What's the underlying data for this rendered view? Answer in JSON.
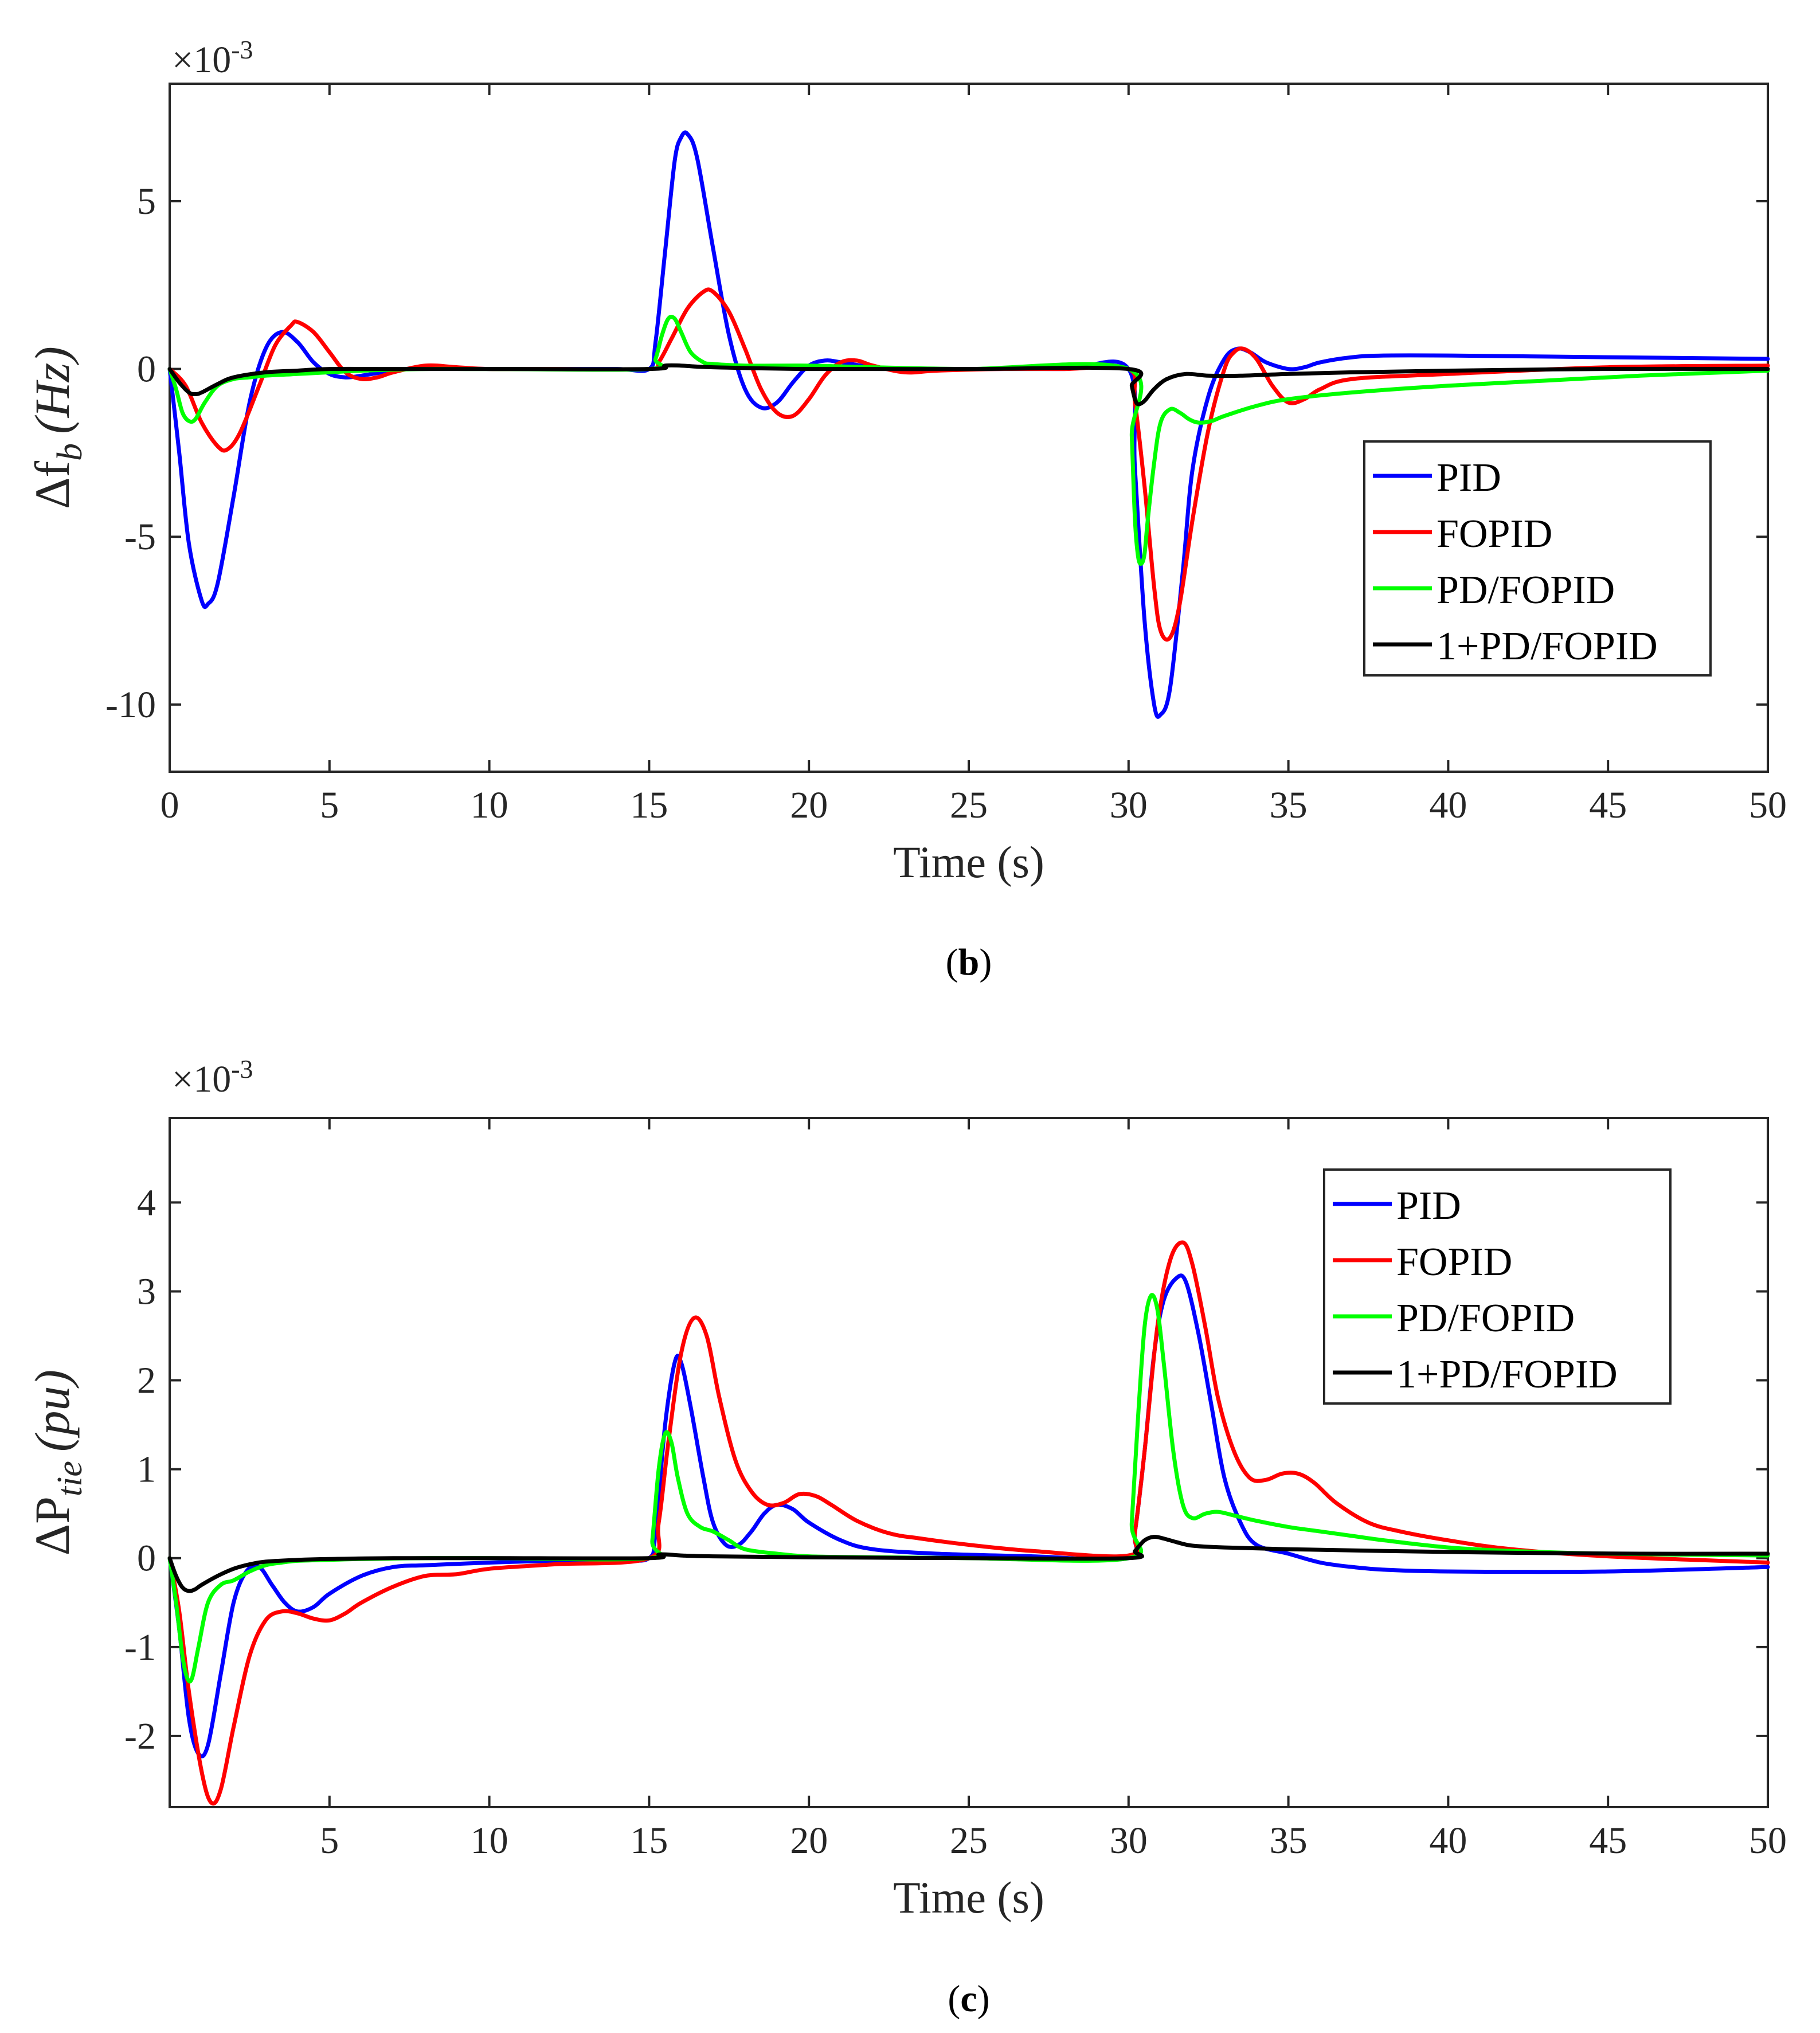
{
  "colors": {
    "PID": "#0000ff",
    "FOPID": "#ff0000",
    "PD/FOPID": "#00ff00",
    "1+PD/FOPID": "#000000"
  },
  "chart_data": [
    {
      "id": "b",
      "type": "line",
      "caption_label": "b",
      "ylabel_main": "Δf",
      "ylabel_sub": "b",
      "ylabel_unit": "(Hz)",
      "xlabel": "Time (s)",
      "exponent_label": "×10",
      "exponent_power": "-3",
      "xlim": [
        0,
        50
      ],
      "ylim": [
        -12,
        8.5
      ],
      "xticks": [
        0,
        5,
        10,
        15,
        20,
        25,
        30,
        35,
        40,
        45,
        50
      ],
      "xtick_labels": [
        "0",
        "5",
        "10",
        "15",
        "20",
        "25",
        "30",
        "35",
        "40",
        "45",
        "50"
      ],
      "yticks": [
        -10,
        -5,
        0,
        5
      ],
      "ytick_labels": [
        "-10",
        "-5",
        "0",
        "5"
      ],
      "legend": [
        "PID",
        "FOPID",
        "PD/FOPID",
        "1+PD/FOPID"
      ],
      "legend_position": "right-middle",
      "series": [
        {
          "name": "PID",
          "color": "#0000ff",
          "x": [
            0,
            0.3,
            0.6,
            1.0,
            1.2,
            1.5,
            2.0,
            2.5,
            3.0,
            3.5,
            4.0,
            4.5,
            5.0,
            5.5,
            6.0,
            7.0,
            8.0,
            9.0,
            10.0,
            12.0,
            14.0,
            15.0,
            15.2,
            15.5,
            15.8,
            16.0,
            16.2,
            16.5,
            17.0,
            17.5,
            18.0,
            18.5,
            19.0,
            19.5,
            20.0,
            20.5,
            21.0,
            22.0,
            23.0,
            25.0,
            28.0,
            30.0,
            30.2,
            30.5,
            30.8,
            31.0,
            31.3,
            31.7,
            32.0,
            32.5,
            33.0,
            33.4,
            33.8,
            34.3,
            35.0,
            35.5,
            36.0,
            37.0,
            38.0,
            40.0,
            45.0,
            50.0
          ],
          "y": [
            0,
            -2.5,
            -5.2,
            -6.9,
            -7.0,
            -6.4,
            -3.8,
            -1.0,
            0.6,
            1.1,
            0.8,
            0.2,
            -0.15,
            -0.25,
            -0.2,
            -0.05,
            0.05,
            0.02,
            0,
            0,
            0,
            0,
            0.8,
            3.5,
            6.2,
            6.9,
            7.0,
            6.3,
            3.6,
            1.0,
            -0.6,
            -1.15,
            -1.0,
            -0.4,
            0.1,
            0.25,
            0.2,
            0.05,
            0,
            0,
            0,
            0,
            -3.0,
            -7.5,
            -10.0,
            -10.3,
            -9.5,
            -6.0,
            -3.0,
            -0.8,
            0.3,
            0.6,
            0.5,
            0.2,
            0.0,
            0.05,
            0.2,
            0.35,
            0.4,
            0.4,
            0.35,
            0.3
          ]
        },
        {
          "name": "FOPID",
          "color": "#ff0000",
          "x": [
            0,
            0.5,
            1.0,
            1.5,
            1.8,
            2.2,
            2.8,
            3.3,
            3.8,
            4.0,
            4.5,
            5.0,
            5.5,
            6.0,
            6.5,
            7.0,
            8.0,
            9.0,
            10.0,
            12.0,
            15.0,
            15.3,
            15.7,
            16.2,
            16.7,
            17.0,
            17.5,
            18.0,
            18.5,
            19.0,
            19.5,
            20.0,
            20.5,
            21.0,
            21.5,
            22.0,
            23.0,
            24.0,
            26.0,
            28.0,
            30.0,
            30.2,
            30.5,
            30.8,
            31.0,
            31.3,
            31.6,
            32.0,
            32.5,
            33.0,
            33.3,
            33.6,
            34.0,
            34.5,
            35.0,
            35.5,
            36.0,
            37.0,
            40.0,
            45.0,
            50.0
          ],
          "y": [
            0,
            -0.5,
            -1.6,
            -2.3,
            -2.4,
            -1.9,
            -0.5,
            0.7,
            1.3,
            1.4,
            1.1,
            0.5,
            -0.1,
            -0.3,
            -0.25,
            -0.1,
            0.1,
            0.05,
            0,
            0,
            0,
            0.2,
            0.9,
            1.8,
            2.3,
            2.3,
            1.7,
            0.6,
            -0.6,
            -1.3,
            -1.4,
            -0.9,
            -0.2,
            0.2,
            0.25,
            0.1,
            -0.1,
            -0.05,
            0,
            0,
            0,
            -1.0,
            -3.5,
            -6.5,
            -7.8,
            -8.0,
            -7.0,
            -4.5,
            -1.8,
            0.0,
            0.5,
            0.6,
            0.3,
            -0.5,
            -1.0,
            -0.9,
            -0.6,
            -0.3,
            -0.15,
            0.05,
            0.1
          ]
        },
        {
          "name": "PD/FOPID",
          "color": "#00ff00",
          "x": [
            0,
            0.2,
            0.4,
            0.6,
            0.8,
            1.1,
            1.5,
            2.0,
            2.5,
            3.0,
            4.0,
            5.0,
            6.0,
            8.0,
            10.0,
            15.0,
            15.2,
            15.4,
            15.6,
            15.8,
            16.0,
            16.3,
            16.7,
            17.0,
            18.0,
            20.0,
            22.0,
            25.0,
            30.0,
            30.1,
            30.2,
            30.3,
            30.4,
            30.5,
            30.6,
            30.8,
            31.0,
            31.3,
            31.6,
            31.9,
            32.2,
            32.6,
            33.0,
            34.0,
            35.0,
            37.0,
            40.0,
            43.0,
            46.0,
            50.0
          ],
          "y": [
            0,
            -0.6,
            -1.3,
            -1.55,
            -1.5,
            -1.0,
            -0.5,
            -0.3,
            -0.25,
            -0.2,
            -0.15,
            -0.1,
            -0.05,
            0,
            0,
            0,
            0.3,
            1.0,
            1.5,
            1.5,
            1.1,
            0.5,
            0.2,
            0.15,
            0.1,
            0.1,
            0.05,
            0,
            0,
            -2.0,
            -4.5,
            -5.6,
            -5.8,
            -5.5,
            -4.5,
            -2.8,
            -1.6,
            -1.2,
            -1.3,
            -1.5,
            -1.6,
            -1.55,
            -1.4,
            -1.1,
            -0.9,
            -0.7,
            -0.5,
            -0.35,
            -0.2,
            -0.05
          ]
        },
        {
          "name": "1+PD/FOPID",
          "color": "#000000",
          "x": [
            0,
            0.3,
            0.6,
            0.8,
            1.0,
            1.5,
            2.0,
            3.0,
            4.0,
            5.0,
            7.0,
            10.0,
            15.0,
            15.5,
            16.0,
            17.0,
            20.0,
            25.0,
            30.0,
            30.1,
            30.2,
            30.3,
            30.5,
            30.8,
            31.2,
            31.8,
            32.5,
            33.5,
            35.0,
            37.0,
            40.0,
            45.0,
            50.0
          ],
          "y": [
            0,
            -0.4,
            -0.7,
            -0.75,
            -0.7,
            -0.45,
            -0.25,
            -0.1,
            -0.05,
            0,
            0,
            0,
            0,
            0.1,
            0.1,
            0.05,
            0,
            0,
            0,
            -0.5,
            -0.9,
            -1.05,
            -0.95,
            -0.6,
            -0.3,
            -0.15,
            -0.2,
            -0.2,
            -0.15,
            -0.1,
            -0.05,
            0,
            0
          ]
        }
      ]
    },
    {
      "id": "c",
      "type": "line",
      "caption_label": "c",
      "ylabel_main": "ΔP",
      "ylabel_sub": "tie",
      "ylabel_unit": "(pu)",
      "xlabel": "Time (s)",
      "exponent_label": "×10",
      "exponent_power": "-3",
      "xlim": [
        0,
        50
      ],
      "ylim": [
        -2.8,
        4.95
      ],
      "xticks": [
        5,
        10,
        15,
        20,
        25,
        30,
        35,
        40,
        45,
        50
      ],
      "xtick_labels": [
        "5",
        "10",
        "15",
        "20",
        "25",
        "30",
        "35",
        "40",
        "45",
        "50"
      ],
      "yticks": [
        -2,
        -1,
        0,
        1,
        2,
        3,
        4
      ],
      "ytick_labels": [
        "-2",
        "-1",
        "0",
        "1",
        "2",
        "3",
        "4"
      ],
      "legend": [
        "PID",
        "FOPID",
        "PD/FOPID",
        "1+PD/FOPID"
      ],
      "legend_position": "top-right",
      "series": [
        {
          "name": "PID",
          "color": "#0000ff",
          "x": [
            0,
            0.3,
            0.6,
            0.9,
            1.2,
            1.6,
            2.0,
            2.4,
            2.8,
            3.2,
            3.6,
            4.0,
            4.5,
            5.0,
            6.0,
            7.0,
            8.0,
            10.0,
            12.0,
            14.0,
            15.0,
            15.2,
            15.5,
            15.8,
            16.0,
            16.3,
            16.7,
            17.0,
            17.4,
            17.8,
            18.2,
            18.6,
            19.0,
            19.5,
            20.0,
            21.0,
            22.0,
            24.0,
            27.0,
            30.0,
            30.2,
            30.5,
            30.8,
            31.1,
            31.5,
            31.8,
            32.2,
            32.6,
            33.0,
            33.5,
            34.0,
            35.0,
            36.0,
            37.0,
            38.0,
            40.0,
            45.0,
            50.0
          ],
          "y": [
            0,
            -0.8,
            -1.8,
            -2.2,
            -2.1,
            -1.3,
            -0.5,
            -0.15,
            -0.1,
            -0.3,
            -0.5,
            -0.6,
            -0.55,
            -0.4,
            -0.2,
            -0.1,
            -0.08,
            -0.05,
            -0.03,
            -0.02,
            0,
            0.3,
            1.5,
            2.2,
            2.2,
            1.7,
            0.9,
            0.4,
            0.15,
            0.15,
            0.3,
            0.5,
            0.6,
            0.55,
            0.4,
            0.2,
            0.1,
            0.05,
            0.02,
            0,
            0.3,
            1.2,
            2.3,
            2.9,
            3.15,
            3.1,
            2.5,
            1.7,
            0.9,
            0.4,
            0.15,
            0.05,
            -0.05,
            -0.1,
            -0.13,
            -0.15,
            -0.15,
            -0.1
          ]
        },
        {
          "name": "FOPID",
          "color": "#ff0000",
          "x": [
            0,
            0.3,
            0.6,
            1.0,
            1.3,
            1.6,
            2.0,
            2.5,
            3.0,
            3.5,
            4.0,
            4.5,
            5.0,
            5.5,
            6.0,
            7.0,
            8.0,
            9.0,
            10.0,
            12.0,
            15.0,
            15.3,
            15.6,
            16.0,
            16.4,
            16.8,
            17.2,
            17.7,
            18.2,
            18.7,
            19.2,
            19.7,
            20.2,
            20.7,
            21.5,
            22.5,
            23.5,
            25.0,
            27.0,
            30.0,
            30.2,
            30.5,
            30.9,
            31.3,
            31.7,
            32.0,
            32.4,
            32.8,
            33.3,
            33.8,
            34.3,
            34.8,
            35.3,
            35.8,
            36.5,
            37.5,
            38.5,
            40.0,
            42.0,
            45.0,
            50.0
          ],
          "y": [
            0,
            -0.6,
            -1.5,
            -2.4,
            -2.75,
            -2.6,
            -1.9,
            -1.1,
            -0.7,
            -0.6,
            -0.62,
            -0.68,
            -0.7,
            -0.62,
            -0.5,
            -0.32,
            -0.2,
            -0.18,
            -0.12,
            -0.07,
            0,
            0.4,
            1.3,
            2.3,
            2.7,
            2.5,
            1.8,
            1.1,
            0.75,
            0.6,
            0.62,
            0.72,
            0.7,
            0.6,
            0.42,
            0.28,
            0.22,
            0.15,
            0.08,
            0.03,
            0.3,
            1.2,
            2.6,
            3.35,
            3.55,
            3.3,
            2.6,
            1.8,
            1.2,
            0.9,
            0.88,
            0.95,
            0.95,
            0.85,
            0.62,
            0.4,
            0.3,
            0.2,
            0.1,
            0.02,
            -0.05
          ]
        },
        {
          "name": "PD/FOPID",
          "color": "#00ff00",
          "x": [
            0,
            0.2,
            0.4,
            0.55,
            0.7,
            0.9,
            1.2,
            1.6,
            2.0,
            2.5,
            3.0,
            3.5,
            4.0,
            5.0,
            6.0,
            8.0,
            10.0,
            15.0,
            15.1,
            15.3,
            15.5,
            15.7,
            15.9,
            16.2,
            16.6,
            17.0,
            17.5,
            18.0,
            19.0,
            20.0,
            22.0,
            25.0,
            30.0,
            30.1,
            30.3,
            30.5,
            30.7,
            30.9,
            31.1,
            31.4,
            31.7,
            32.0,
            32.4,
            32.8,
            33.3,
            34.0,
            35.0,
            36.0,
            37.0,
            38.0,
            40.0,
            42.0,
            45.0,
            50.0
          ],
          "y": [
            0,
            -0.5,
            -1.1,
            -1.35,
            -1.35,
            -1.0,
            -0.5,
            -0.3,
            -0.25,
            -0.15,
            -0.08,
            -0.05,
            -0.03,
            -0.02,
            -0.01,
            0,
            0,
            0,
            0.2,
            1.0,
            1.4,
            1.3,
            0.9,
            0.5,
            0.35,
            0.3,
            0.2,
            0.1,
            0.05,
            0.02,
            0.01,
            0,
            0,
            0.4,
            1.6,
            2.6,
            2.95,
            2.8,
            2.2,
            1.2,
            0.6,
            0.45,
            0.5,
            0.52,
            0.48,
            0.42,
            0.35,
            0.3,
            0.25,
            0.2,
            0.12,
            0.08,
            0.05,
            0.03
          ]
        },
        {
          "name": "1+PD/FOPID",
          "color": "#000000",
          "x": [
            0,
            0.2,
            0.4,
            0.6,
            0.8,
            1.0,
            1.5,
            2.0,
            2.5,
            3.0,
            4.0,
            5.0,
            7.0,
            10.0,
            15.0,
            15.3,
            15.6,
            16.0,
            17.0,
            20.0,
            25.0,
            30.0,
            30.2,
            30.5,
            30.8,
            31.1,
            31.5,
            32.0,
            33.0,
            35.0,
            38.0,
            42.0,
            46.0,
            50.0
          ],
          "y": [
            0,
            -0.2,
            -0.33,
            -0.37,
            -0.35,
            -0.3,
            -0.2,
            -0.12,
            -0.07,
            -0.04,
            -0.02,
            -0.01,
            0,
            0,
            0,
            0.04,
            0.04,
            0.03,
            0.02,
            0.01,
            0,
            0,
            0.08,
            0.2,
            0.24,
            0.22,
            0.18,
            0.14,
            0.12,
            0.1,
            0.08,
            0.06,
            0.05,
            0.05
          ]
        }
      ]
    }
  ]
}
